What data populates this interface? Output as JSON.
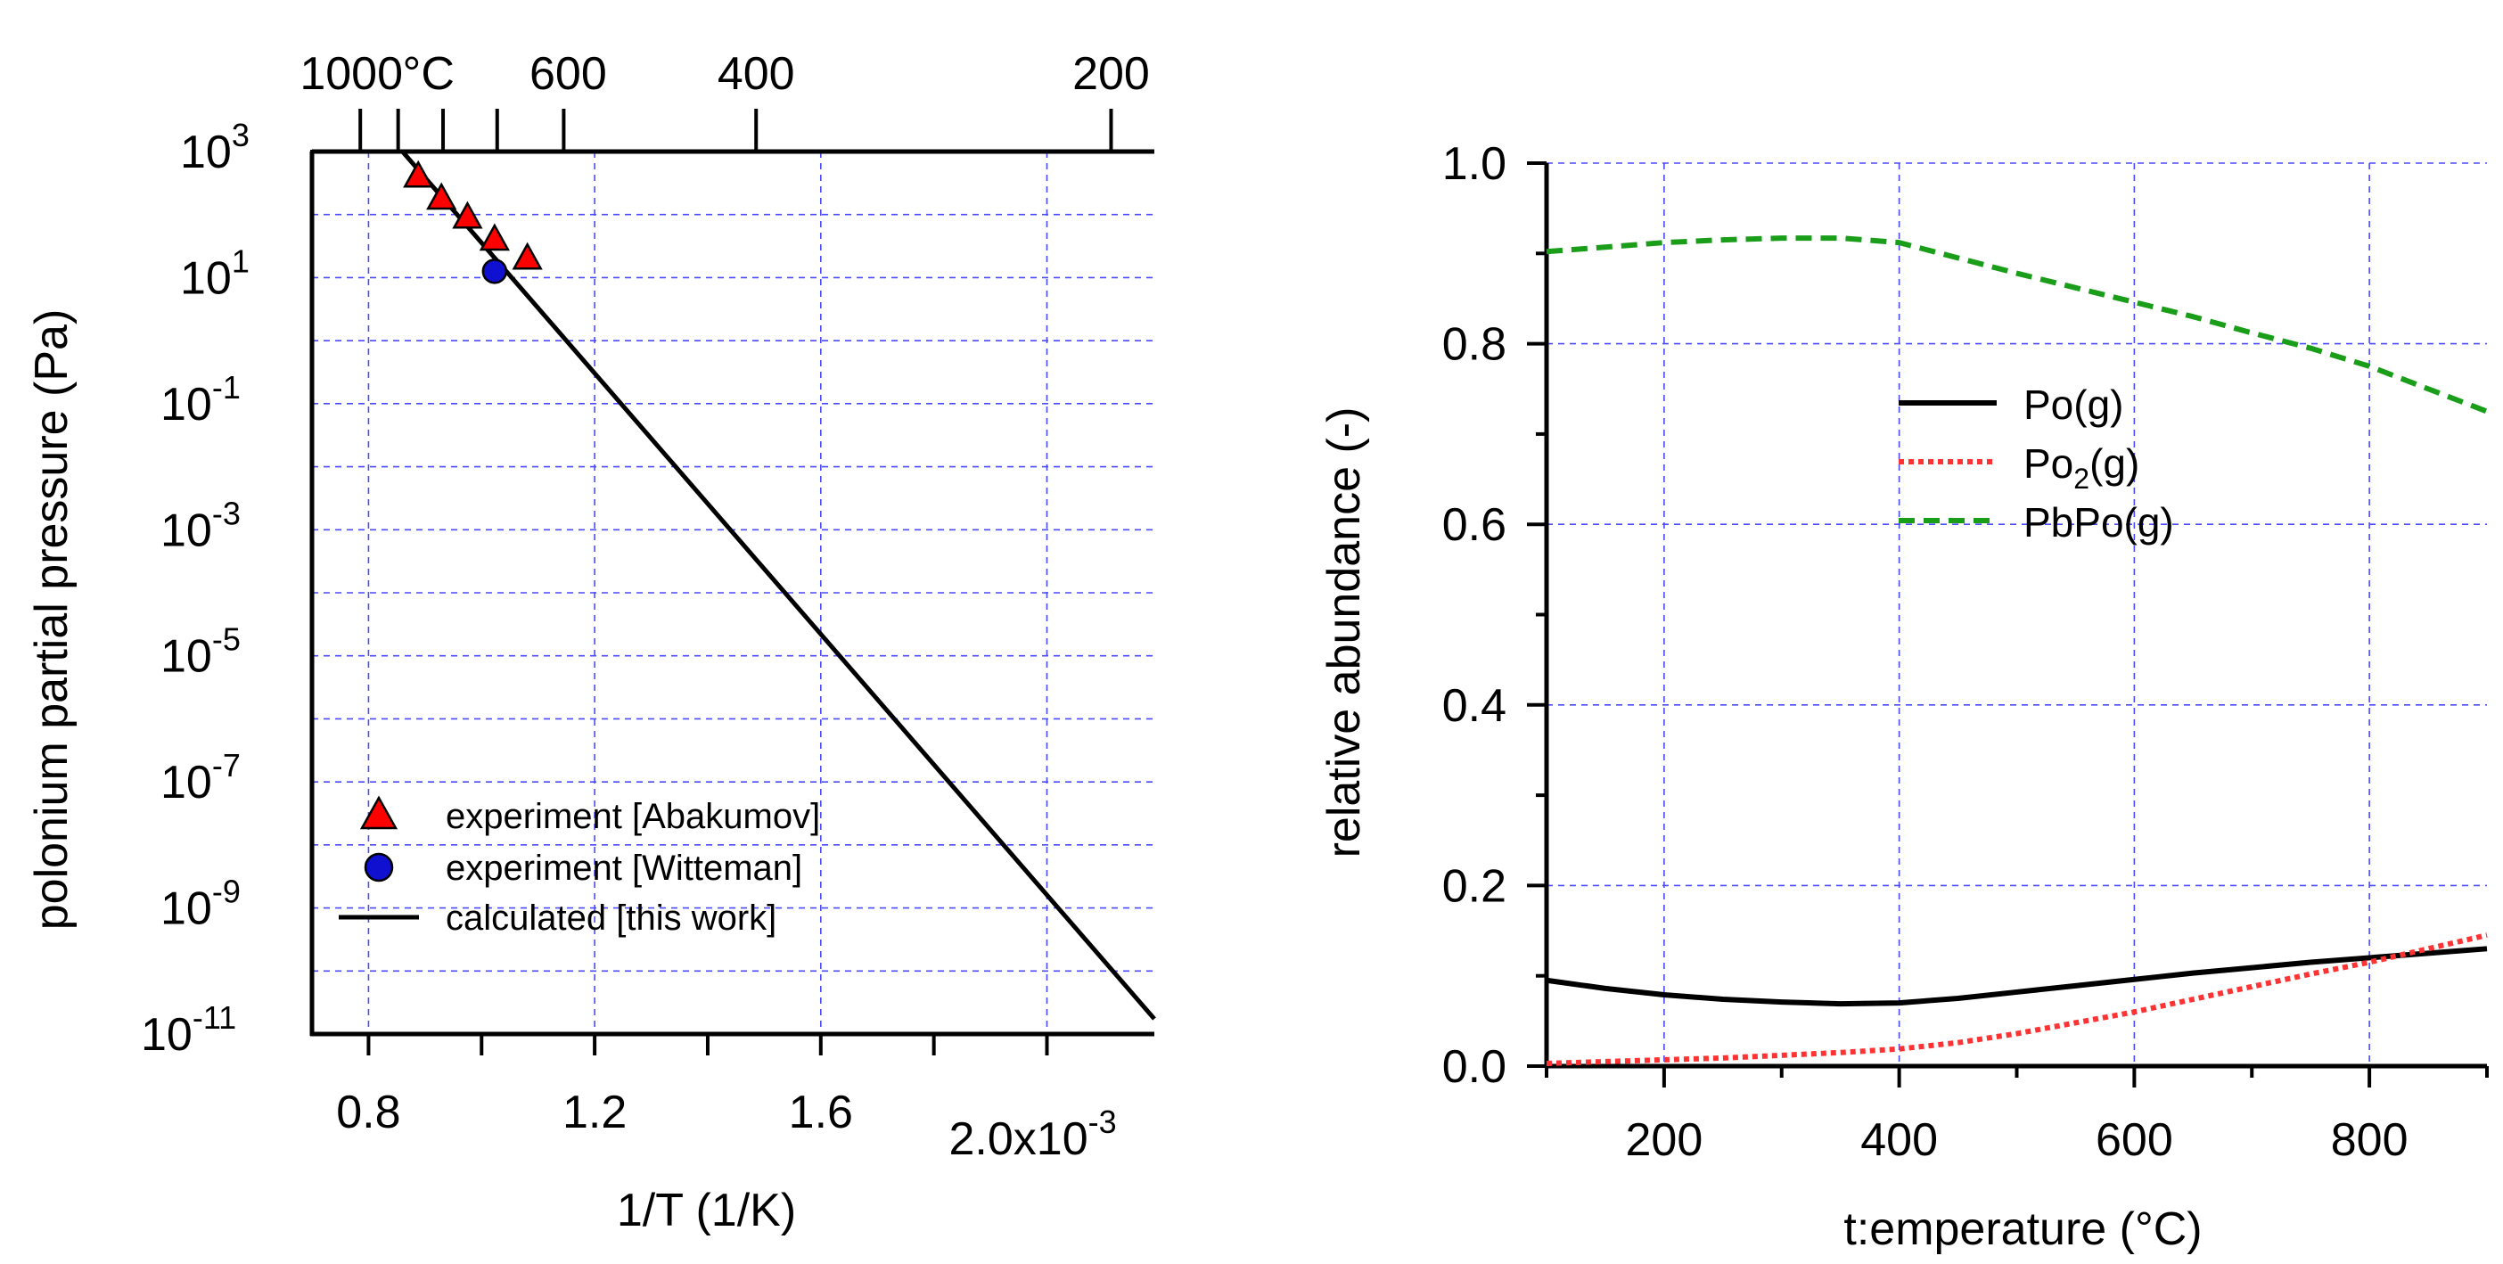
{
  "chart_data": [
    {
      "type": "scatter",
      "title": "",
      "xlabel": "1/T (1/K)",
      "ylabel": "polonium partial pressure (Pa)",
      "xlim": [
        0.0007,
        0.00219
      ],
      "yscale": "log",
      "ylim_exp": [
        -11,
        3
      ],
      "x_tick_labels": [
        "0.8",
        "1.2",
        "1.6",
        "2.0x10"
      ],
      "x_tick_values": [
        0.0008,
        0.0012,
        0.0016,
        0.002
      ],
      "x_tick_exp": "-3",
      "y_major_exponents": [
        3,
        1,
        -1,
        -3,
        -5,
        -7,
        -9,
        -11
      ],
      "top_axis": {
        "unit_label": "°C",
        "tick_labels": [
          "1000",
          "600",
          "400",
          "200"
        ],
        "tick_values_c": [
          1000,
          600,
          400,
          200
        ],
        "minor_values_c": [
          900,
          800,
          700
        ]
      },
      "series": [
        {
          "name": "experiment [Abakumov]",
          "marker": "triangle",
          "color": "#ff0000",
          "x": [
            0.000888,
            0.000929,
            0.000975,
            0.001023,
            0.001081
          ],
          "log10_y": [
            2.6,
            2.25,
            1.95,
            1.6,
            1.3
          ]
        },
        {
          "name": "experiment [Witteman]",
          "marker": "circle",
          "color": "#1010d0",
          "x": [
            0.001023
          ],
          "log10_y": [
            1.1
          ]
        },
        {
          "name": "calculated [this work]",
          "marker": "line",
          "color": "#000000",
          "x": [
            0.00086,
            0.00219
          ],
          "log10_y": [
            3.0,
            -10.76
          ]
        }
      ],
      "legend": [
        "experiment [Abakumov]",
        "experiment [Witteman]",
        "calculated [this work]"
      ]
    },
    {
      "type": "line",
      "title": "",
      "xlabel": "t:emperature (°C)",
      "ylabel": "relative abundance (-)",
      "xlim": [
        100,
        900
      ],
      "ylim": [
        0,
        1
      ],
      "x_ticks": [
        200,
        400,
        600,
        800
      ],
      "y_ticks": [
        "0.0",
        "0.2",
        "0.4",
        "0.6",
        "0.8",
        "1.0"
      ],
      "y_tick_values": [
        0,
        0.2,
        0.4,
        0.6,
        0.8,
        1.0
      ],
      "series": [
        {
          "name": "Po(g)",
          "name_parts": [
            "Po(g)",
            "",
            ""
          ],
          "color": "#000000",
          "style": "solid",
          "x": [
            100,
            150,
            200,
            250,
            300,
            350,
            400,
            450,
            500,
            550,
            600,
            650,
            700,
            750,
            800,
            850,
            900
          ],
          "y": [
            0.095,
            0.086,
            0.079,
            0.074,
            0.071,
            0.069,
            0.07,
            0.075,
            0.082,
            0.089,
            0.096,
            0.103,
            0.109,
            0.115,
            0.12,
            0.125,
            0.13
          ]
        },
        {
          "name": "Po2(g)",
          "name_parts": [
            "Po",
            "2",
            "(g)"
          ],
          "color": "#ff3333",
          "style": "dotted",
          "x": [
            100,
            150,
            200,
            250,
            300,
            350,
            400,
            450,
            500,
            550,
            600,
            650,
            700,
            750,
            800,
            850,
            900
          ],
          "y": [
            0.003,
            0.005,
            0.007,
            0.009,
            0.012,
            0.015,
            0.019,
            0.026,
            0.036,
            0.048,
            0.06,
            0.074,
            0.088,
            0.102,
            0.115,
            0.13,
            0.145
          ]
        },
        {
          "name": "PbPo(g)",
          "name_parts": [
            "PbPo(g)",
            "",
            ""
          ],
          "color": "#1a9e1a",
          "style": "dashed",
          "x": [
            100,
            150,
            200,
            250,
            300,
            350,
            400,
            450,
            500,
            550,
            600,
            650,
            700,
            750,
            800,
            850,
            900
          ],
          "y": [
            0.902,
            0.907,
            0.912,
            0.915,
            0.917,
            0.917,
            0.912,
            0.895,
            0.878,
            0.862,
            0.846,
            0.83,
            0.812,
            0.795,
            0.775,
            0.75,
            0.725
          ]
        }
      ],
      "legend": [
        "Po(g)",
        "Po2(g)",
        "PbPo(g)"
      ]
    }
  ]
}
